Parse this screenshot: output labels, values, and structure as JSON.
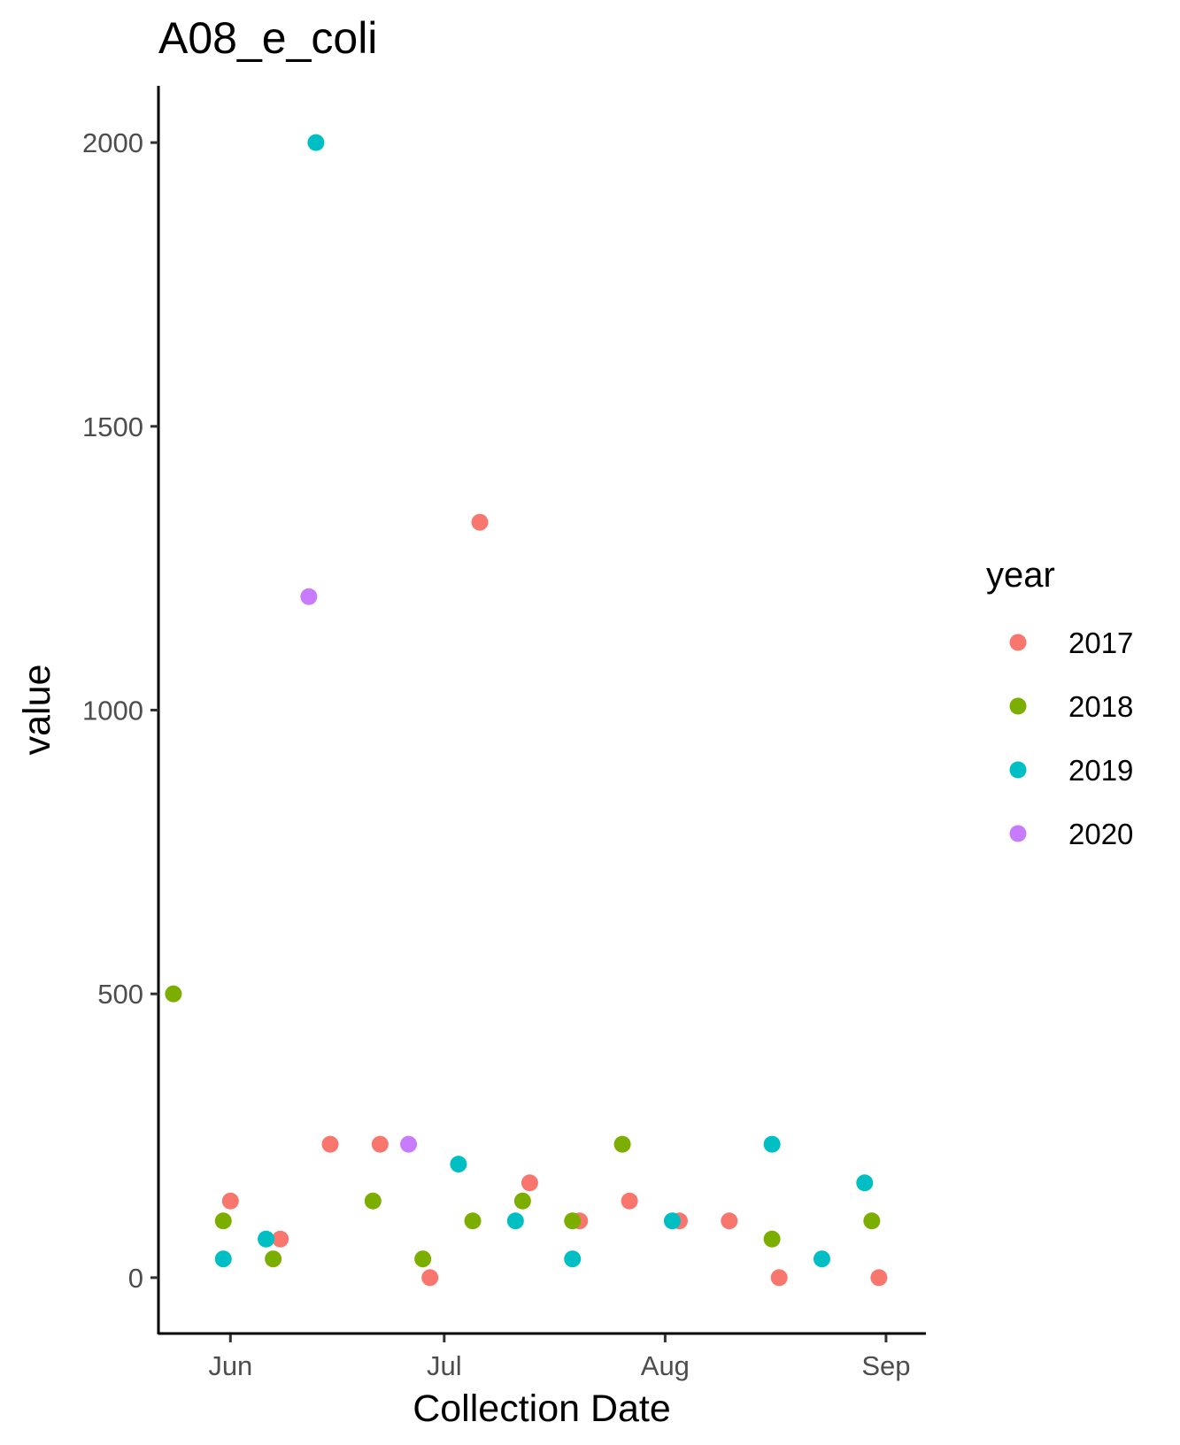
{
  "chart_data": {
    "type": "scatter",
    "title": "A08_e_coli",
    "xlabel": "Collection Date",
    "ylabel": "value",
    "grid": false,
    "legend_position": "right",
    "x_axis": {
      "unit": "day-of-year",
      "range": [
        141.9,
        249.6
      ],
      "ticks": [
        {
          "label": "Jun",
          "value": 152
        },
        {
          "label": "Jul",
          "value": 182
        },
        {
          "label": "Aug",
          "value": 213
        },
        {
          "label": "Sep",
          "value": 244
        }
      ]
    },
    "y_axis": {
      "range": [
        -100,
        2100
      ],
      "ticks": [
        {
          "label": "0",
          "value": 0
        },
        {
          "label": "500",
          "value": 500
        },
        {
          "label": "1000",
          "value": 1000
        },
        {
          "label": "1500",
          "value": 1500
        },
        {
          "label": "2000",
          "value": 2000
        }
      ]
    },
    "legend": {
      "title": "year"
    },
    "series": [
      {
        "name": "2017",
        "color": "#F8766D",
        "points": [
          {
            "x": 152,
            "y": 135
          },
          {
            "x": 159,
            "y": 68
          },
          {
            "x": 166,
            "y": 235
          },
          {
            "x": 173,
            "y": 235
          },
          {
            "x": 180,
            "y": 0
          },
          {
            "x": 187,
            "y": 1331
          },
          {
            "x": 194,
            "y": 167
          },
          {
            "x": 201,
            "y": 100
          },
          {
            "x": 208,
            "y": 135
          },
          {
            "x": 215,
            "y": 100
          },
          {
            "x": 222,
            "y": 100
          },
          {
            "x": 229,
            "y": 0
          },
          {
            "x": 243,
            "y": 0
          }
        ]
      },
      {
        "name": "2018",
        "color": "#7CAE00",
        "points": [
          {
            "x": 144,
            "y": 500
          },
          {
            "x": 151,
            "y": 100
          },
          {
            "x": 158,
            "y": 33
          },
          {
            "x": 172,
            "y": 135
          },
          {
            "x": 179,
            "y": 33
          },
          {
            "x": 186,
            "y": 100
          },
          {
            "x": 193,
            "y": 135
          },
          {
            "x": 200,
            "y": 100
          },
          {
            "x": 207,
            "y": 235
          },
          {
            "x": 228,
            "y": 68
          },
          {
            "x": 242,
            "y": 100
          }
        ]
      },
      {
        "name": "2019",
        "color": "#00BFC4",
        "points": [
          {
            "x": 151,
            "y": 33
          },
          {
            "x": 157,
            "y": 68
          },
          {
            "x": 164,
            "y": 2000
          },
          {
            "x": 184,
            "y": 200
          },
          {
            "x": 192,
            "y": 100
          },
          {
            "x": 200,
            "y": 33
          },
          {
            "x": 214,
            "y": 100
          },
          {
            "x": 228,
            "y": 235
          },
          {
            "x": 235,
            "y": 33
          },
          {
            "x": 241,
            "y": 167
          }
        ]
      },
      {
        "name": "2020",
        "color": "#C77CFF",
        "points": [
          {
            "x": 163,
            "y": 1200
          },
          {
            "x": 177,
            "y": 235
          }
        ]
      }
    ]
  }
}
